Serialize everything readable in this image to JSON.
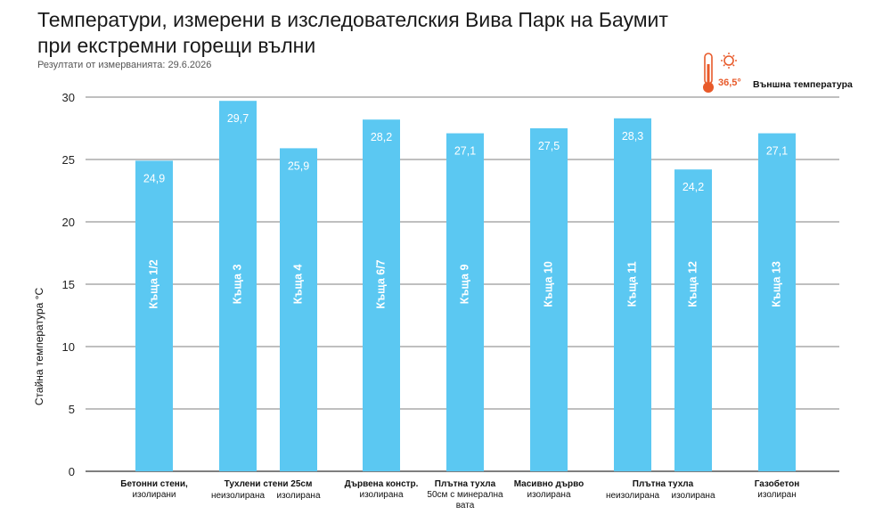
{
  "chart_data": {
    "type": "bar",
    "title_lines": [
      "Температури, измерени в изследователския Вива Парк на Баумит",
      "при екстремни горещи вълни"
    ],
    "subtitle": "Резултати от измерванията: 29.6.2026",
    "ylabel": "Стайна температура °C",
    "ylim": [
      0,
      30
    ],
    "yticks": [
      0,
      5,
      10,
      15,
      20,
      25,
      30
    ],
    "grid": true,
    "bar_color": "#5bc8f2",
    "categories": [
      "Къща 1/2",
      "Къща 3",
      "Къща 4",
      "Къща 6/7",
      "Къща 9",
      "Къща 10",
      "Къща 11",
      "Къща 12",
      "Къща 13"
    ],
    "values": [
      24.9,
      29.7,
      25.9,
      28.2,
      27.1,
      27.5,
      28.3,
      24.2,
      27.1
    ],
    "value_labels": [
      "24,9",
      "29,7",
      "25,9",
      "28,2",
      "27,1",
      "27,5",
      "28,3",
      "24,2",
      "27,1"
    ],
    "group_labels": [
      {
        "title": "Бетонни стени,",
        "sub": "изолирани"
      },
      {
        "title": "Тухлени стени 25см",
        "sub": ""
      },
      {
        "title": "",
        "sub": "неизолирана"
      },
      {
        "title": "",
        "sub": "изолирана"
      },
      {
        "title": "Дървена констр.",
        "sub": "изолирана"
      },
      {
        "title": "Плътна тухла",
        "sub": "50см с минерална"
      },
      {
        "title": "",
        "sub": "вата"
      },
      {
        "title": "Масивно дърво",
        "sub": "изолирана"
      },
      {
        "title": "Плътна тухла",
        "sub": ""
      },
      {
        "title": "",
        "sub": "неизолирана"
      },
      {
        "title": "",
        "sub": "изолирана"
      },
      {
        "title": "Газобетон",
        "sub": "изолиран"
      }
    ],
    "legend": {
      "temp": "36,5°",
      "label": "Външна температура",
      "icon": "thermometer-sun-icon",
      "color": "#e85a2a"
    }
  }
}
